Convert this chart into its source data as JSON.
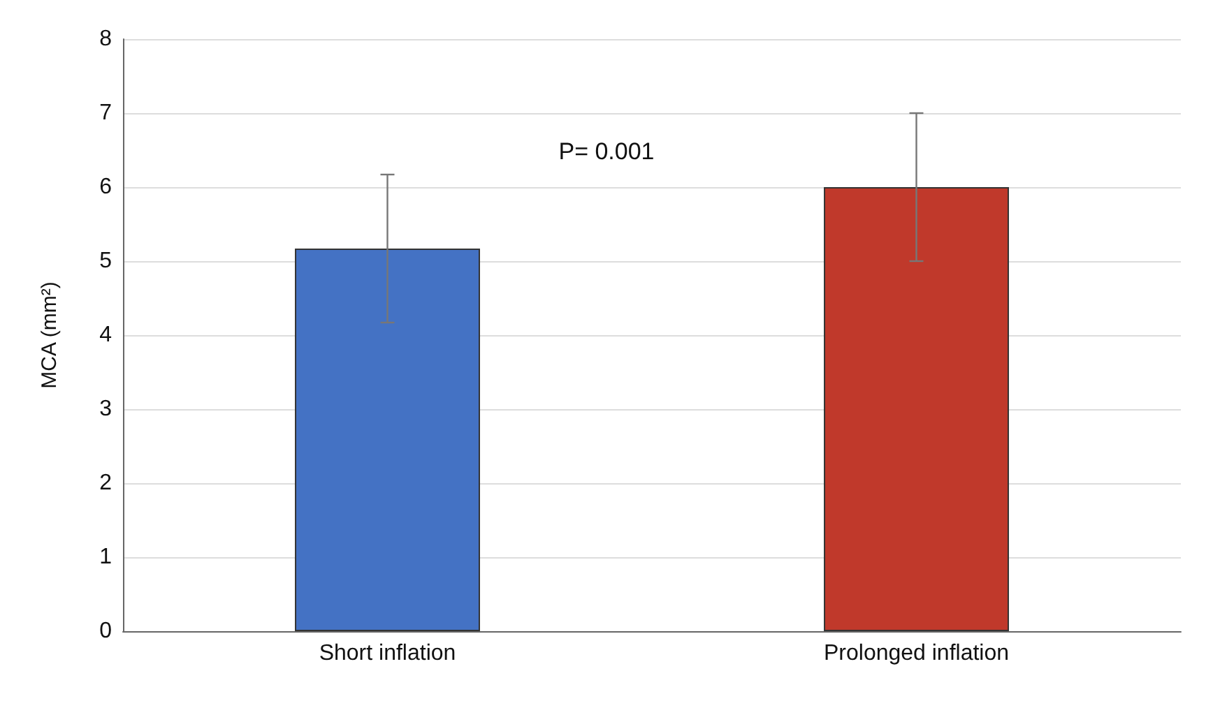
{
  "chart_data": {
    "type": "bar",
    "ylabel": "MCA (mm²)",
    "categories": [
      "Short inflation",
      "Prolonged inflation"
    ],
    "values": [
      5.17,
      6.0
    ],
    "colors": [
      "#4472c4",
      "#c0392b"
    ],
    "errors": [
      1,
      1
    ],
    "ylim": [
      0,
      8
    ],
    "yticks": [
      0,
      1,
      2,
      3,
      4,
      5,
      6,
      7,
      8
    ],
    "grid": "y",
    "annotations": [
      "P= 0.001"
    ]
  }
}
